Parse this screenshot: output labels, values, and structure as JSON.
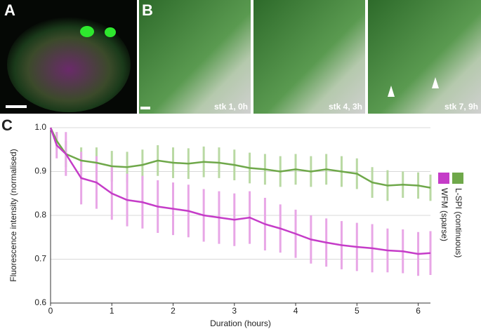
{
  "panels": {
    "a": {
      "label": "A"
    },
    "b": {
      "label": "B",
      "frames": [
        "stk 1, 0h",
        "stk 4, 3h",
        "stk 7, 9h"
      ]
    }
  },
  "chart_data": {
    "type": "line",
    "panel_label": "C",
    "x_label": "Duration (hours)",
    "y_label": "Fluorescence intensity (normalised)",
    "x": [
      0,
      0.1,
      0.25,
      0.5,
      0.75,
      1,
      1.25,
      1.5,
      1.75,
      2,
      2.25,
      2.5,
      2.75,
      3,
      3.25,
      3.5,
      3.75,
      4,
      4.25,
      4.5,
      4.75,
      5,
      5.25,
      5.5,
      5.75,
      6,
      6.2
    ],
    "series": [
      {
        "name": "L-SPI (continuous)",
        "color": "#6fa84a",
        "errcolor": "#b9d9a3",
        "values": [
          1.0,
          0.97,
          0.94,
          0.925,
          0.92,
          0.912,
          0.91,
          0.915,
          0.925,
          0.92,
          0.918,
          0.922,
          0.92,
          0.915,
          0.908,
          0.905,
          0.9,
          0.905,
          0.9,
          0.905,
          0.9,
          0.895,
          0.875,
          0.868,
          0.87,
          0.868,
          0.863
        ],
        "errors": [
          0,
          0.02,
          0.03,
          0.03,
          0.035,
          0.035,
          0.035,
          0.035,
          0.035,
          0.035,
          0.035,
          0.035,
          0.035,
          0.035,
          0.035,
          0.035,
          0.035,
          0.035,
          0.035,
          0.035,
          0.035,
          0.035,
          0.035,
          0.035,
          0.03,
          0.03,
          0.03
        ]
      },
      {
        "name": "WFM (sparse)",
        "color": "#c53cc8",
        "errcolor": "#e8a6e6",
        "values": [
          1.0,
          0.96,
          0.94,
          0.885,
          0.875,
          0.85,
          0.835,
          0.83,
          0.82,
          0.815,
          0.81,
          0.8,
          0.795,
          0.79,
          0.795,
          0.78,
          0.77,
          0.758,
          0.745,
          0.738,
          0.732,
          0.728,
          0.725,
          0.72,
          0.718,
          0.712,
          0.714
        ],
        "errors": [
          0,
          0.03,
          0.05,
          0.06,
          0.06,
          0.06,
          0.06,
          0.06,
          0.06,
          0.06,
          0.06,
          0.06,
          0.06,
          0.06,
          0.06,
          0.06,
          0.055,
          0.055,
          0.055,
          0.055,
          0.055,
          0.055,
          0.055,
          0.05,
          0.05,
          0.05,
          0.05
        ]
      }
    ],
    "xlim": [
      0,
      6.2
    ],
    "ylim": [
      0.6,
      1.0
    ],
    "xticks": [
      0,
      1,
      2,
      3,
      4,
      5,
      6
    ],
    "yticks": [
      0.6,
      0.7,
      0.8,
      0.9,
      {
        "value": 1,
        "label": "1.0"
      }
    ],
    "grid": true
  }
}
